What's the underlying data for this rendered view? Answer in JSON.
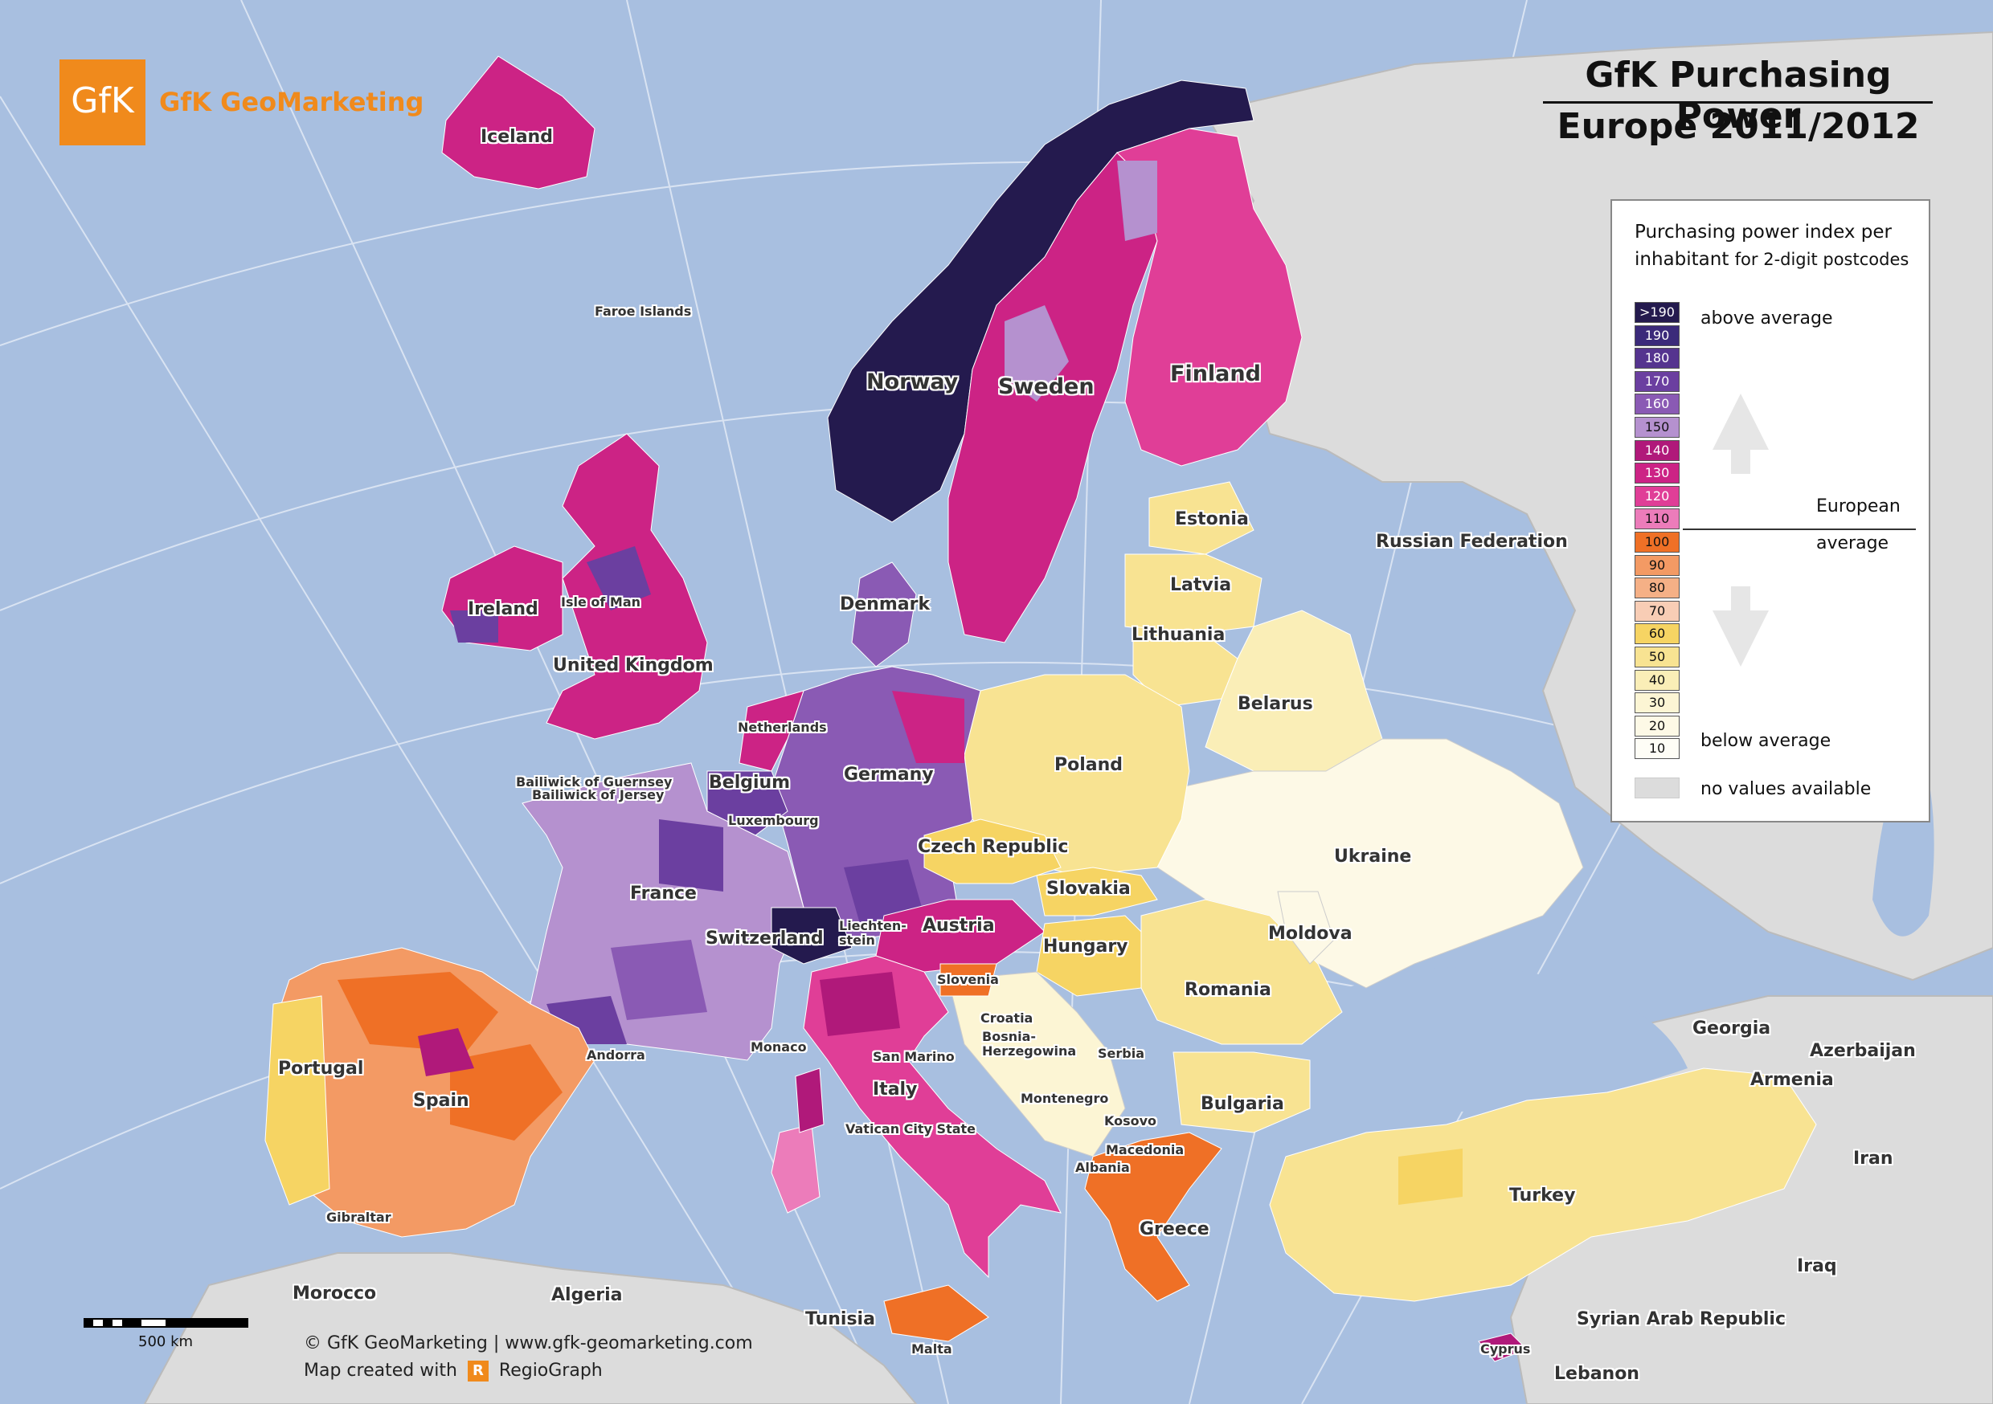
{
  "header": {
    "brand_mark": "GfK",
    "brand_name": "GfK GeoMarketing",
    "title_line1": "GfK Purchasing Power",
    "title_line2": "Europe 2011/2012"
  },
  "legend": {
    "title_a": "Purchasing power index per",
    "title_b": "inhabitant",
    "title_c": "for 2-digit postcodes",
    "classes": [
      {
        "label": ">190",
        "color": "#241a4e",
        "text": "#fff"
      },
      {
        "label": "190",
        "color": "#3b2a7a",
        "text": "#fff"
      },
      {
        "label": "180",
        "color": "#55348f",
        "text": "#fff"
      },
      {
        "label": "170",
        "color": "#6b3fa0",
        "text": "#fff"
      },
      {
        "label": "160",
        "color": "#8a5ab4",
        "text": "#fff"
      },
      {
        "label": "150",
        "color": "#b591cf",
        "text": "#111"
      },
      {
        "label": "140",
        "color": "#b0197a",
        "text": "#fff"
      },
      {
        "label": "130",
        "color": "#cc2385",
        "text": "#fff"
      },
      {
        "label": "120",
        "color": "#e03e97",
        "text": "#fff"
      },
      {
        "label": "110",
        "color": "#ec7cba",
        "text": "#111"
      },
      {
        "label": "100",
        "color": "#ef7026",
        "text": "#111"
      },
      {
        "label": "90",
        "color": "#f39a64",
        "text": "#111"
      },
      {
        "label": "80",
        "color": "#f5b086",
        "text": "#111"
      },
      {
        "label": "70",
        "color": "#f8cdb5",
        "text": "#111"
      },
      {
        "label": "60",
        "color": "#f6d463",
        "text": "#111"
      },
      {
        "label": "50",
        "color": "#f8e392",
        "text": "#111"
      },
      {
        "label": "40",
        "color": "#faeeb7",
        "text": "#111"
      },
      {
        "label": "30",
        "color": "#fcf5d4",
        "text": "#111"
      },
      {
        "label": "20",
        "color": "#fdf9e6",
        "text": "#111"
      },
      {
        "label": "10",
        "color": "#fefdf6",
        "text": "#111"
      }
    ],
    "above": "above average",
    "european": "European",
    "average": "average",
    "below": "below average",
    "no_values": "no values available",
    "no_values_color": "#dcdcdc"
  },
  "labels": {
    "iceland": "Iceland",
    "faroe": "Faroe Islands",
    "norway": "Norway",
    "sweden": "Sweden",
    "finland": "Finland",
    "estonia": "Estonia",
    "latvia": "Latvia",
    "lithuania": "Lithuania",
    "russia": "Russian Federation",
    "belarus": "Belarus",
    "denmark": "Denmark",
    "ireland": "Ireland",
    "isle_of_man": "Isle of Man",
    "uk": "United Kingdom",
    "netherlands": "Netherlands",
    "guernsey": "Bailiwick of Guernsey",
    "jersey": "Bailiwick of Jersey",
    "belgium": "Belgium",
    "germany": "Germany",
    "poland": "Poland",
    "luxembourg": "Luxembourg",
    "czech": "Czech Republic",
    "ukraine": "Ukraine",
    "france": "France",
    "slovakia": "Slovakia",
    "liechtenstein": "Liechten-\nstein",
    "switzerland": "Switzerland",
    "austria": "Austria",
    "hungary": "Hungary",
    "moldova": "Moldova",
    "slovenia": "Slovenia",
    "romania": "Romania",
    "croatia": "Croatia",
    "bosnia": "Bosnia-\nHerzegowina",
    "serbia": "Serbia",
    "andorra": "Andorra",
    "monaco": "Monaco",
    "san_marino": "San Marino",
    "portugal": "Portugal",
    "spain": "Spain",
    "italy": "Italy",
    "montenegro": "Montenegro",
    "bulgaria": "Bulgaria",
    "kosovo": "Kosovo",
    "vatican": "Vatican City State",
    "macedonia": "Macedonia",
    "albania": "Albania",
    "georgia": "Georgia",
    "azerbaijan": "Azerbaijan",
    "armenia": "Armenia",
    "turkey": "Turkey",
    "iran": "Iran",
    "greece": "Greece",
    "gibraltar": "Gibraltar",
    "iraq": "Iraq",
    "morocco": "Morocco",
    "algeria": "Algeria",
    "tunisia": "Tunisia",
    "malta": "Malta",
    "syria": "Syrian Arab Republic",
    "cyprus": "Cyprus",
    "lebanon": "Lebanon"
  },
  "footer": {
    "copyright": "© GfK GeoMarketing  |  www.gfk-geomarketing.com",
    "created_with": "Map created with",
    "r_glyph": "R",
    "regiograph": "RegioGraph",
    "scale": "500 km"
  }
}
